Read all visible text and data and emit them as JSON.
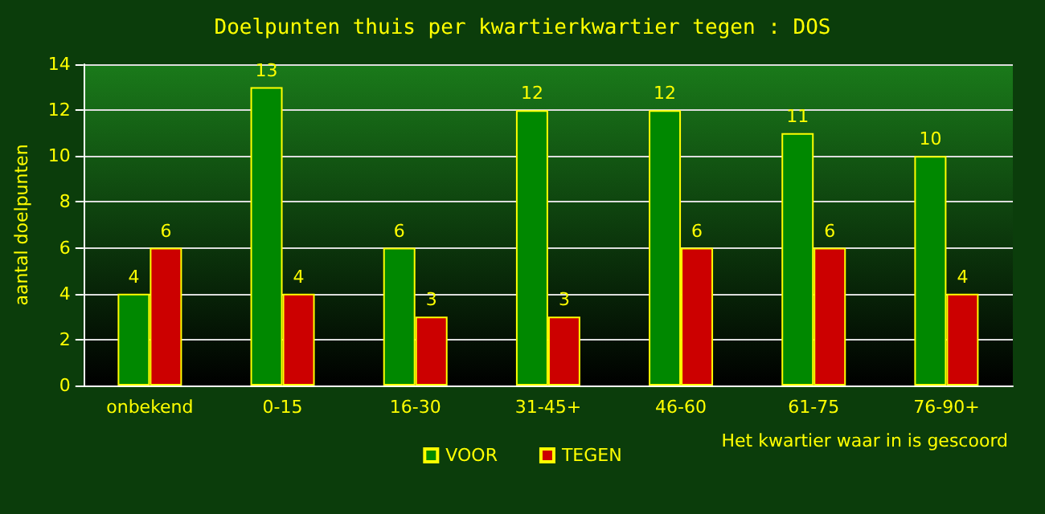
{
  "chart_data": {
    "type": "bar",
    "title": "Doelpunten thuis per kwartierkwartier tegen : DOS",
    "xlabel": "Het kwartier waar in is gescoord",
    "ylabel": "aantal doelpunten",
    "categories": [
      "onbekend",
      "0-15",
      "16-30",
      "31-45+",
      "46-60",
      "61-75",
      "76-90+"
    ],
    "series": [
      {
        "name": "VOOR",
        "color": "#008800",
        "values": [
          4,
          13,
          6,
          12,
          12,
          11,
          10
        ]
      },
      {
        "name": "TEGEN",
        "color": "#cc0000",
        "values": [
          6,
          4,
          3,
          3,
          6,
          6,
          4
        ]
      }
    ],
    "ylim": [
      0,
      14
    ],
    "yticks": [
      0,
      2,
      4,
      6,
      8,
      10,
      12,
      14
    ],
    "grid": "y",
    "legend": "bottom",
    "data_labels": true
  }
}
